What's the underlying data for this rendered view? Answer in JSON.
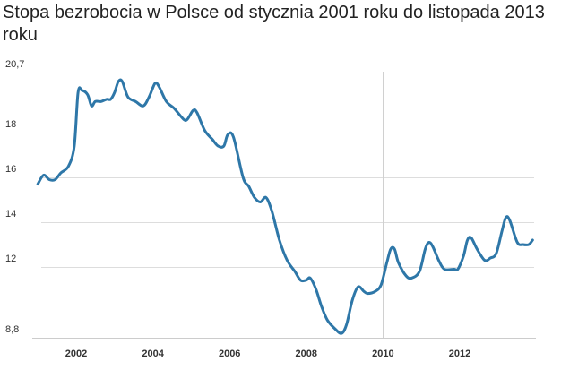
{
  "chart_data": {
    "type": "line",
    "title": "Stopa bezrobocia w Polsce od stycznia 2001 roku do listopada 2013 roku",
    "xlabel": "",
    "ylabel": "",
    "x_tick_labels": [
      "2002",
      "2004",
      "2006",
      "2008",
      "2010",
      "2012"
    ],
    "y_tick_labels": [
      "8,8",
      "12",
      "14",
      "16",
      "18",
      "20,7"
    ],
    "ylim": [
      8.8,
      20.7
    ],
    "xlim": [
      2001.0,
      2013.9
    ],
    "grid": true,
    "vertical_marker": 2010.0,
    "series": [
      {
        "color": "#2e77a8",
        "points": [
          [
            2001.0,
            15.7
          ],
          [
            2001.15,
            16.1
          ],
          [
            2001.3,
            15.9
          ],
          [
            2001.45,
            15.9
          ],
          [
            2001.6,
            16.2
          ],
          [
            2001.8,
            16.5
          ],
          [
            2001.95,
            17.4
          ],
          [
            2002.05,
            19.8
          ],
          [
            2002.15,
            19.9
          ],
          [
            2002.3,
            19.7
          ],
          [
            2002.4,
            19.2
          ],
          [
            2002.5,
            19.4
          ],
          [
            2002.65,
            19.4
          ],
          [
            2002.8,
            19.5
          ],
          [
            2002.9,
            19.5
          ],
          [
            2003.0,
            19.8
          ],
          [
            2003.1,
            20.3
          ],
          [
            2003.2,
            20.3
          ],
          [
            2003.35,
            19.6
          ],
          [
            2003.55,
            19.4
          ],
          [
            2003.75,
            19.2
          ],
          [
            2003.9,
            19.6
          ],
          [
            2004.05,
            20.2
          ],
          [
            2004.15,
            20.1
          ],
          [
            2004.35,
            19.4
          ],
          [
            2004.55,
            19.1
          ],
          [
            2004.8,
            18.6
          ],
          [
            2004.9,
            18.6
          ],
          [
            2005.05,
            19.0
          ],
          [
            2005.15,
            18.9
          ],
          [
            2005.35,
            18.1
          ],
          [
            2005.55,
            17.7
          ],
          [
            2005.7,
            17.4
          ],
          [
            2005.85,
            17.4
          ],
          [
            2005.95,
            17.9
          ],
          [
            2006.1,
            17.8
          ],
          [
            2006.35,
            16.0
          ],
          [
            2006.5,
            15.6
          ],
          [
            2006.65,
            15.1
          ],
          [
            2006.8,
            14.9
          ],
          [
            2006.95,
            15.1
          ],
          [
            2007.1,
            14.5
          ],
          [
            2007.3,
            13.2
          ],
          [
            2007.5,
            12.3
          ],
          [
            2007.7,
            11.8
          ],
          [
            2007.85,
            11.4
          ],
          [
            2008.0,
            11.4
          ],
          [
            2008.1,
            11.5
          ],
          [
            2008.25,
            11.0
          ],
          [
            2008.4,
            10.2
          ],
          [
            2008.55,
            9.6
          ],
          [
            2008.75,
            9.2
          ],
          [
            2008.92,
            9.0
          ],
          [
            2009.05,
            9.4
          ],
          [
            2009.2,
            10.5
          ],
          [
            2009.35,
            11.1
          ],
          [
            2009.5,
            10.9
          ],
          [
            2009.6,
            10.8
          ],
          [
            2009.8,
            10.9
          ],
          [
            2009.95,
            11.2
          ],
          [
            2010.1,
            12.2
          ],
          [
            2010.2,
            12.8
          ],
          [
            2010.3,
            12.8
          ],
          [
            2010.4,
            12.2
          ],
          [
            2010.6,
            11.6
          ],
          [
            2010.75,
            11.5
          ],
          [
            2010.95,
            11.8
          ],
          [
            2011.1,
            12.8
          ],
          [
            2011.2,
            13.1
          ],
          [
            2011.3,
            12.9
          ],
          [
            2011.45,
            12.3
          ],
          [
            2011.6,
            11.9
          ],
          [
            2011.85,
            11.9
          ],
          [
            2011.95,
            11.9
          ],
          [
            2012.1,
            12.5
          ],
          [
            2012.2,
            13.2
          ],
          [
            2012.3,
            13.3
          ],
          [
            2012.45,
            12.8
          ],
          [
            2012.65,
            12.3
          ],
          [
            2012.8,
            12.4
          ],
          [
            2012.95,
            12.6
          ],
          [
            2013.1,
            13.6
          ],
          [
            2013.2,
            14.2
          ],
          [
            2013.3,
            14.1
          ],
          [
            2013.5,
            13.1
          ],
          [
            2013.65,
            13.0
          ],
          [
            2013.8,
            13.0
          ],
          [
            2013.9,
            13.2
          ]
        ]
      }
    ]
  }
}
